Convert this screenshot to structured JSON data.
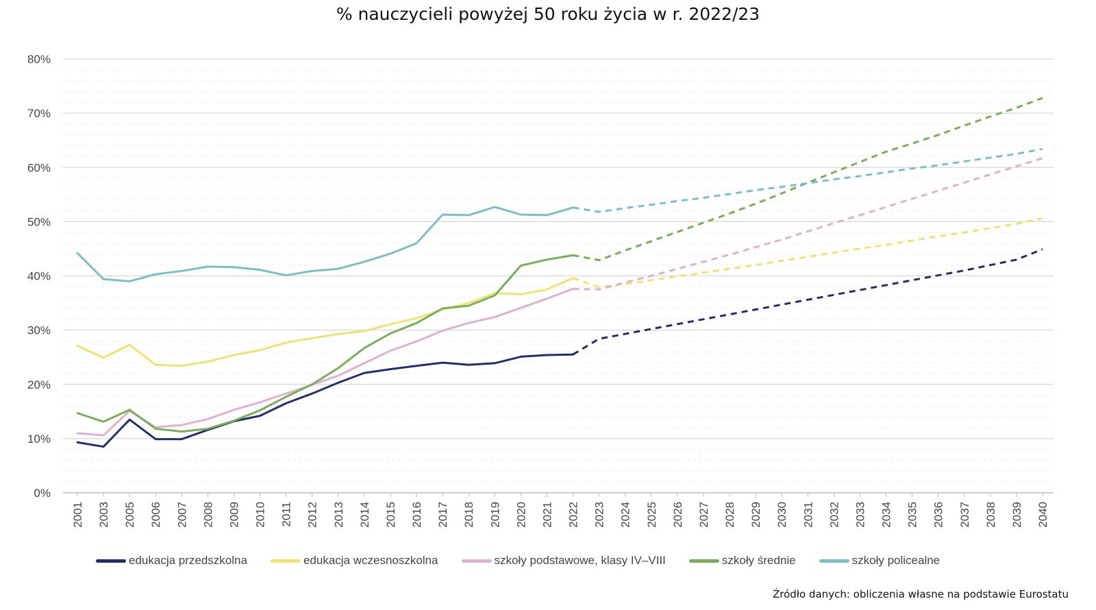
{
  "title": "% nauczycieli powyżej 50 roku życia w r. 2022/23",
  "source": "Źródło danych: obliczenia własne na podstawie Eurostatu",
  "chart_data": {
    "type": "line",
    "title": "% nauczycieli powyżej 50 roku życia w r. 2022/23",
    "xlabel": "",
    "ylabel": "",
    "ylim": [
      0,
      80
    ],
    "yticks": [
      "0%",
      "10%",
      "20%",
      "30%",
      "40%",
      "50%",
      "60%",
      "70%",
      "80%"
    ],
    "grid": true,
    "legend_position": "bottom",
    "categories": [
      "2001",
      "2003",
      "2005",
      "2006",
      "2007",
      "2008",
      "2009",
      "2010",
      "2011",
      "2012",
      "2013",
      "2014",
      "2015",
      "2016",
      "2017",
      "2018",
      "2019",
      "2020",
      "2021",
      "2022",
      "2023",
      "2024",
      "2025",
      "2026",
      "2027",
      "2028",
      "2029",
      "2030",
      "2031",
      "2032",
      "2033",
      "2034",
      "2035",
      "2036",
      "2037",
      "2038",
      "2039",
      "2040"
    ],
    "projection_start": "2022",
    "series": [
      {
        "name": "edukacja przedszkolna",
        "color": "#232d6e",
        "values": [
          9.3,
          8.5,
          13.5,
          9.9,
          9.9,
          11.6,
          13.2,
          14.2,
          16.5,
          18.3,
          20.3,
          22.1,
          22.8,
          23.4,
          24.0,
          23.6,
          23.9,
          25.1,
          25.4,
          25.5,
          28.4,
          29.3,
          30.2,
          31.1,
          32.0,
          32.9,
          33.8,
          34.7,
          35.6,
          36.5,
          37.4,
          38.3,
          39.2,
          40.1,
          41.0,
          42.0,
          43.0,
          44.9
        ]
      },
      {
        "name": "edukacja wczesnoszkolna",
        "color": "#ede36e",
        "values": [
          27.1,
          24.9,
          27.3,
          23.6,
          23.4,
          24.2,
          25.4,
          26.3,
          27.7,
          28.5,
          29.3,
          29.8,
          31.1,
          32.2,
          33.8,
          35.0,
          36.8,
          36.6,
          37.5,
          39.6,
          37.9,
          38.5,
          39.2,
          39.9,
          40.6,
          41.3,
          42.0,
          42.8,
          43.5,
          44.3,
          45.0,
          45.7,
          46.5,
          47.3,
          48.0,
          48.8,
          49.6,
          50.6
        ]
      },
      {
        "name": "szkoły podstawowe, klasy IV–VIII",
        "color": "#ddb1cf",
        "values": [
          11.0,
          10.6,
          15.1,
          12.1,
          12.5,
          13.6,
          15.3,
          16.7,
          18.3,
          19.9,
          21.6,
          23.9,
          26.2,
          27.9,
          29.9,
          31.3,
          32.4,
          34.1,
          35.8,
          37.6,
          37.5,
          38.8,
          40.0,
          41.3,
          42.6,
          43.9,
          45.3,
          46.7,
          48.2,
          49.7,
          51.2,
          52.7,
          54.2,
          55.7,
          57.2,
          58.7,
          60.2,
          61.7
        ]
      },
      {
        "name": "szkoły średnie",
        "color": "#78ad5a",
        "values": [
          14.7,
          13.1,
          15.3,
          11.8,
          11.3,
          11.8,
          13.3,
          15.2,
          17.7,
          20.0,
          23.0,
          26.7,
          29.4,
          31.3,
          34.0,
          34.5,
          36.4,
          41.9,
          43.0,
          43.8,
          42.9,
          44.7,
          46.4,
          48.1,
          49.8,
          51.5,
          53.3,
          55.2,
          57.2,
          59.1,
          61.0,
          62.9,
          64.4,
          66.0,
          67.7,
          69.4,
          71.0,
          72.8
        ]
      },
      {
        "name": "szkoły policealne",
        "color": "#7abfc6",
        "values": [
          44.2,
          39.4,
          39.0,
          40.3,
          40.9,
          41.7,
          41.6,
          41.1,
          40.1,
          40.9,
          41.3,
          42.6,
          44.1,
          46.0,
          51.3,
          51.2,
          52.7,
          51.3,
          51.2,
          52.6,
          51.8,
          52.5,
          53.1,
          53.8,
          54.4,
          55.1,
          55.8,
          56.4,
          57.1,
          57.8,
          58.4,
          59.1,
          59.8,
          60.4,
          61.1,
          61.8,
          62.5,
          63.4
        ]
      }
    ]
  }
}
